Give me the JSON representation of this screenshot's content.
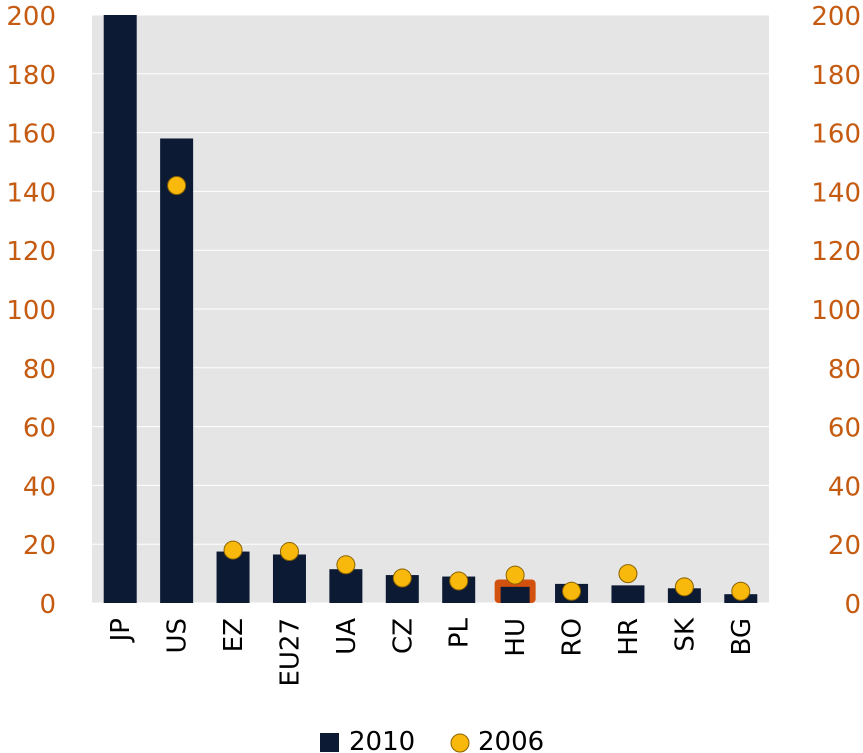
{
  "chart_data": {
    "type": "bar",
    "categories": [
      "JP",
      "US",
      "EZ",
      "EU27",
      "UA",
      "CZ",
      "PL",
      "HU",
      "RO",
      "HR",
      "SK",
      "BG"
    ],
    "series": [
      {
        "name": "2010",
        "kind": "bar",
        "values": [
          200,
          158,
          17.5,
          16.5,
          11.5,
          9.5,
          9,
          5.5,
          6.5,
          6,
          5,
          3
        ]
      },
      {
        "name": "2006",
        "kind": "marker",
        "values": [
          null,
          142,
          18,
          17.5,
          13,
          8.5,
          7.5,
          9.5,
          4,
          10,
          5.5,
          4
        ]
      }
    ],
    "highlight_category": "HU",
    "ylim": [
      0,
      200
    ],
    "y_ticks": [
      0,
      20,
      40,
      60,
      80,
      100,
      120,
      140,
      160,
      180,
      200
    ],
    "secondary_y_ticks": [
      0,
      20,
      40,
      60,
      80,
      100,
      120,
      140,
      160,
      180,
      200
    ],
    "grid": true,
    "legend_position": "bottom",
    "colors": {
      "bar": "#0c1a33",
      "marker_fill": "#f9b80c",
      "marker_stroke": "#8a6200",
      "tick_text": "#c55a11",
      "highlight": "#d2510f",
      "plot_bg": "#e5e5e5",
      "grid": "#ffffff"
    }
  }
}
